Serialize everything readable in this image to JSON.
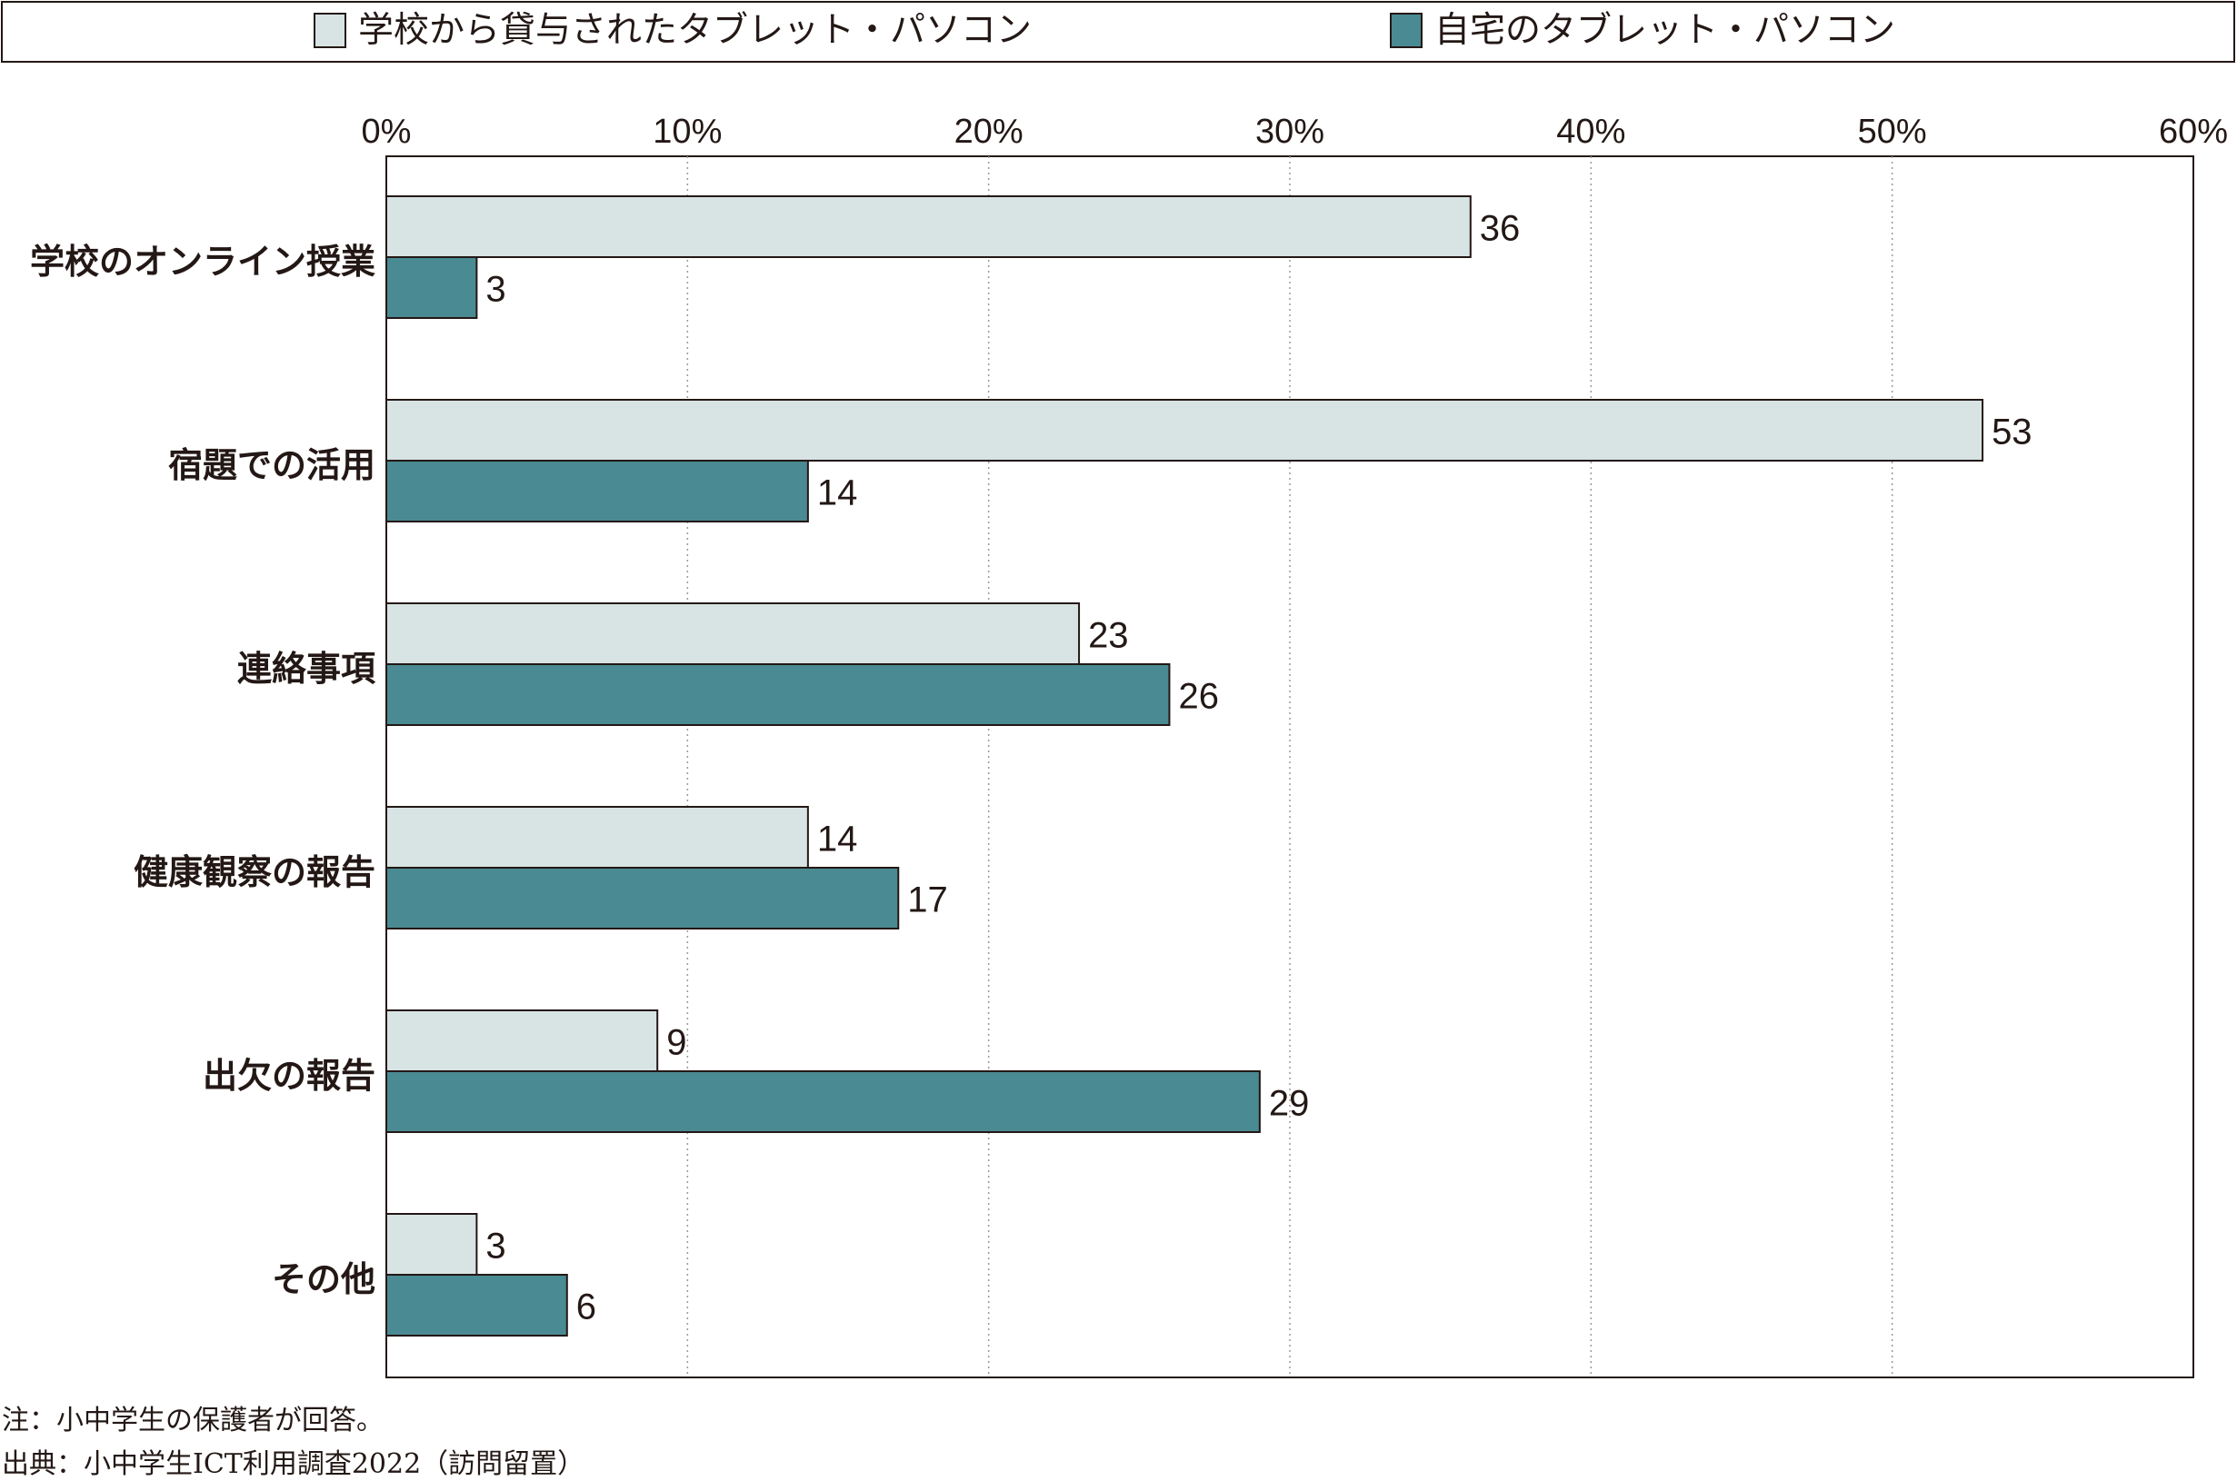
{
  "chart_data": {
    "type": "bar",
    "orientation": "horizontal",
    "categories": [
      "学校のオンライン授業",
      "宿題での活用",
      "連絡事項",
      "健康観察の報告",
      "出欠の報告",
      "その他"
    ],
    "series": [
      {
        "name": "学校から貸与されたタブレット・パソコン",
        "values": [
          36,
          53,
          23,
          14,
          9,
          3
        ],
        "color": "#d8e3e4"
      },
      {
        "name": "自宅のタブレット・パソコン",
        "values": [
          3,
          14,
          26,
          17,
          29,
          6
        ],
        "color": "#4a8a92"
      }
    ],
    "x_ticks": [
      "0%",
      "10%",
      "20%",
      "30%",
      "40%",
      "50%",
      "60%"
    ],
    "xlim": [
      0,
      60
    ],
    "grid": "vertical dotted",
    "legend_position": "top"
  },
  "notes": {
    "note": "注：小中学生の保護者が回答。",
    "source": "出典：小中学生ICT利用調査2022（訪問留置）"
  }
}
